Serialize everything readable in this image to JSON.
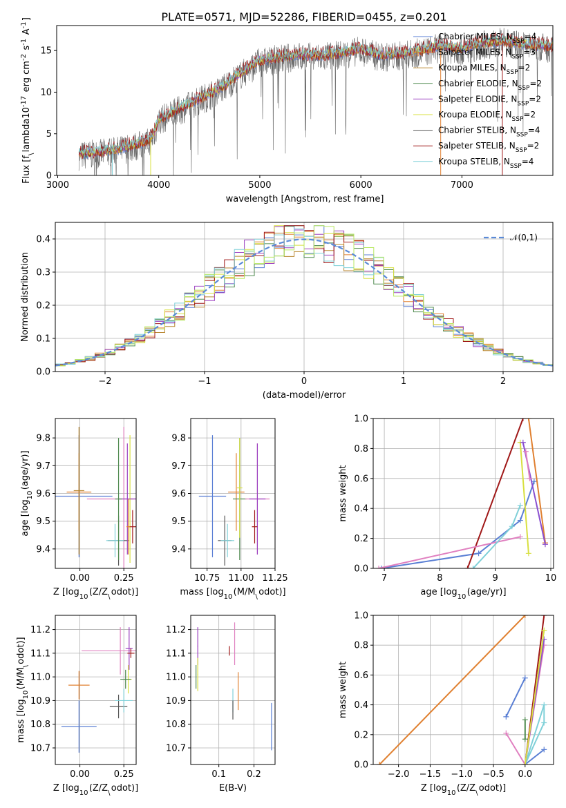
{
  "figure": {
    "title": "PLATE=0571, MJD=52286, FIBERID=0455, z=0.201"
  },
  "model_styles": [
    {
      "label": "Chabrier MILES, N$_{SSP}$=4",
      "label_main": "Chabrier MILES, N",
      "label_sub": "SSP",
      "label_tail": "=4",
      "color": "#5a7fd4"
    },
    {
      "label": "Salpeter MILES, N$_{SSP}$=3",
      "label_main": "Salpeter MILES, N",
      "label_sub": "SSP",
      "label_tail": "=3",
      "color": "#e08030"
    },
    {
      "label": "Kroupa MILES, N$_{SSP}$=2",
      "label_main": "Kroupa MILES, N",
      "label_sub": "SSP",
      "label_tail": "=2",
      "color": "#b8862f"
    },
    {
      "label": "Chabrier ELODIE, N$_{SSP}$=2",
      "label_main": "Chabrier ELODIE, N",
      "label_sub": "SSP",
      "label_tail": "=2",
      "color": "#4f8a4f"
    },
    {
      "label": "Salpeter ELODIE, N$_{SSP}$=2",
      "label_main": "Salpeter ELODIE, N",
      "label_sub": "SSP",
      "label_tail": "=2",
      "color": "#9b3fc0"
    },
    {
      "label": "Kroupa ELODIE, N$_{SSP}$=2",
      "label_main": "Kroupa ELODIE, N",
      "label_sub": "SSP",
      "label_tail": "=2",
      "color": "#d8e040"
    },
    {
      "label": "Chabrier STELIB, N$_{SSP}$=4",
      "label_main": "Chabrier STELIB, N",
      "label_sub": "SSP",
      "label_tail": "=4",
      "color": "#555555"
    },
    {
      "label": "Salpeter STELIB, N$_{SSP}$=2",
      "label_main": "Salpeter STELIB, N",
      "label_sub": "SSP",
      "label_tail": "=2",
      "color": "#a01818"
    },
    {
      "label": "Kroupa STELIB, N$_{SSP}$=4",
      "label_main": "Kroupa STELIB, N",
      "label_sub": "SSP",
      "label_tail": "=4",
      "color": "#7fd0d8"
    }
  ],
  "extra_colors": {
    "pink": "#e080c0",
    "lime": "#b8e860",
    "purple": "#8a4fd0"
  },
  "chart_data": [
    {
      "id": "spectrum",
      "type": "line",
      "xlabel": "wavelength [Angstrom, rest frame]",
      "ylabel": "Flux [f$_\\lambda$10$^{-17}$ erg cm$^{-2}$ s$^{-1}$ A$^{-1}$]",
      "xlim": [
        2990,
        7900
      ],
      "ylim": [
        0,
        18
      ],
      "xticks": [
        3000,
        4000,
        5000,
        6000,
        7000
      ],
      "yticks": [
        0,
        5,
        10,
        15
      ],
      "grid": false,
      "legend_position": "right",
      "data_range_x": [
        3210,
        7900
      ],
      "continuum": [
        [
          3210,
          2.6
        ],
        [
          3400,
          2.8
        ],
        [
          3600,
          3.2
        ],
        [
          3800,
          3.8
        ],
        [
          3900,
          4.2
        ],
        [
          3950,
          5.0
        ],
        [
          4000,
          6.8
        ],
        [
          4200,
          8.0
        ],
        [
          4400,
          9.2
        ],
        [
          4600,
          10.4
        ],
        [
          4800,
          12.2
        ],
        [
          5000,
          13.8
        ],
        [
          5200,
          14.2
        ],
        [
          5400,
          14.5
        ],
        [
          5600,
          14.4
        ],
        [
          5800,
          14.7
        ],
        [
          6000,
          15.2
        ],
        [
          6200,
          14.4
        ],
        [
          6400,
          14.6
        ],
        [
          6600,
          15.0
        ],
        [
          6800,
          15.6
        ],
        [
          7000,
          15.2
        ],
        [
          7200,
          15.9
        ],
        [
          7400,
          16.2
        ],
        [
          7600,
          15.8
        ],
        [
          7900,
          15.5
        ]
      ]
    },
    {
      "id": "residuals",
      "type": "histogram",
      "xlabel": "(data-model)/error",
      "ylabel": "Normed distribution",
      "xlim": [
        -2.5,
        2.5
      ],
      "ylim": [
        0,
        0.45
      ],
      "xticks": [
        -2,
        -1,
        0,
        1,
        2
      ],
      "yticks": [
        0.0,
        0.1,
        0.2,
        0.3,
        0.4
      ],
      "grid": true,
      "legend": "$\\mathcal{N}(0,1)$",
      "legend_position": "top-right",
      "bin_width": 0.1
    },
    {
      "id": "age-vs-Z",
      "type": "scatter",
      "xlabel": "Z [log$_{10}$(Z/Z$_\\odot$)]",
      "ylabel": "age  [log$_{10}$(age/yr)]",
      "xlim": [
        -0.14,
        0.32
      ],
      "ylim": [
        9.33,
        9.87
      ],
      "xticks": [
        0.0,
        0.25
      ],
      "yticks": [
        9.4,
        9.5,
        9.6,
        9.7,
        9.8
      ],
      "grid": true,
      "points": [
        {
          "series": 0,
          "x": -0.005,
          "y": 9.59,
          "xerr": 0.19,
          "yerr": 0.22
        },
        {
          "series": 1,
          "x": -0.005,
          "y": 9.605,
          "xerr": 0.07,
          "yerr": 0.14
        },
        {
          "series": 2,
          "x": -0.005,
          "y": 9.61,
          "xerr": 0.03,
          "yerr": 0.23
        },
        {
          "series": "pink",
          "x": 0.25,
          "y": 9.58,
          "xerr": 0.21,
          "yerr": 0.26
        },
        {
          "series": 6,
          "x": 0.22,
          "y": 9.43,
          "xerr": 0.06,
          "yerr": 0.09
        },
        {
          "series": 8,
          "x": 0.2,
          "y": 9.43,
          "xerr": 0.05,
          "yerr": 0.06
        },
        {
          "series": 5,
          "x": 0.285,
          "y": 9.58,
          "xerr": 0.02,
          "yerr": 0.23
        },
        {
          "series": 4,
          "x": 0.27,
          "y": 9.58,
          "xerr": 0.05,
          "yerr": 0.2
        },
        {
          "series": 3,
          "x": 0.22,
          "y": 9.58,
          "xerr": 0.02,
          "yerr": 0.22
        },
        {
          "series": 7,
          "x": 0.3,
          "y": 9.48,
          "xerr": 0.02,
          "yerr": 0.06
        },
        {
          "series": 1,
          "x": 0.275,
          "y": 9.48,
          "xerr": 0.01,
          "yerr": 0.1
        }
      ]
    },
    {
      "id": "age-vs-mass",
      "type": "scatter",
      "xlabel": "mass [log$_{10}$(M/M$_\\odot$)]",
      "ylabel": "",
      "xlim": [
        10.63,
        11.25
      ],
      "ylim": [
        9.33,
        9.87
      ],
      "xticks": [
        10.75,
        11.0,
        11.25
      ],
      "yticks": [
        9.4,
        9.5,
        9.6,
        9.7,
        9.8
      ],
      "grid": true,
      "points": [
        {
          "series": 0,
          "x": 10.79,
          "y": 9.59,
          "xerr": 0.1,
          "yerr": 0.22
        },
        {
          "series": 1,
          "x": 10.965,
          "y": 9.605,
          "xerr": 0.06,
          "yerr": 0.14
        },
        {
          "series": 6,
          "x": 10.88,
          "y": 9.43,
          "xerr": 0.05,
          "yerr": 0.09
        },
        {
          "series": 8,
          "x": 10.9,
          "y": 9.43,
          "xerr": 0.05,
          "yerr": 0.06
        },
        {
          "series": 3,
          "x": 10.99,
          "y": 9.58,
          "xerr": 0.05,
          "yerr": 0.22
        },
        {
          "series": 5,
          "x": 10.99,
          "y": 9.62,
          "xerr": 0.02,
          "yerr": 0.18
        },
        {
          "series": "pink",
          "x": 11.12,
          "y": 9.58,
          "xerr": 0.09,
          "yerr": 0.2
        },
        {
          "series": 4,
          "x": 11.12,
          "y": 9.58,
          "xerr": 0.06,
          "yerr": 0.2
        },
        {
          "series": 7,
          "x": 11.1,
          "y": 9.48,
          "xerr": 0.02,
          "yerr": 0.06
        }
      ]
    },
    {
      "id": "weight-vs-age",
      "type": "line",
      "xlabel": "age  [log$_{10}$(age/yr)]",
      "ylabel": "mass weight",
      "xlim": [
        6.8,
        10.05
      ],
      "ylim": [
        0,
        1
      ],
      "xticks": [
        7,
        8,
        9,
        10
      ],
      "yticks": [
        0.0,
        0.2,
        0.4,
        0.6,
        0.8,
        1.0
      ],
      "grid": true,
      "series": [
        {
          "series": 0,
          "points": [
            [
              6.95,
              0.0
            ],
            [
              8.7,
              0.1
            ],
            [
              9.45,
              0.32
            ],
            [
              9.7,
              0.58
            ]
          ]
        },
        {
          "series": 1,
          "points": [
            [
              9.6,
              1.0
            ],
            [
              9.9,
              0.17
            ]
          ]
        },
        {
          "series": 7,
          "points": [
            [
              8.5,
              0.0
            ],
            [
              9.5,
              1.0
            ]
          ]
        },
        {
          "series": "pink",
          "points": [
            [
              6.9,
              0.0
            ],
            [
              9.45,
              0.21
            ]
          ]
        },
        {
          "series": 8,
          "points": [
            [
              8.6,
              0.0
            ],
            [
              9.3,
              0.28
            ],
            [
              9.45,
              0.42
            ]
          ]
        },
        {
          "series": 5,
          "points": [
            [
              9.45,
              0.84
            ],
            [
              9.6,
              0.1
            ]
          ]
        },
        {
          "series": "purple",
          "points": [
            [
              9.5,
              0.84
            ],
            [
              9.9,
              0.16
            ]
          ]
        },
        {
          "series": "pink",
          "points": [
            [
              9.55,
              0.78
            ],
            [
              9.62,
              0.6
            ]
          ]
        }
      ]
    },
    {
      "id": "mass-vs-Z",
      "type": "scatter",
      "xlabel": "Z [log$_{10}$(Z/Z$_\\odot$)]",
      "ylabel": "mass [log$_{10}$(M/M$_\\odot$)]",
      "xlim": [
        -0.14,
        0.32
      ],
      "ylim": [
        10.63,
        11.26
      ],
      "xticks": [
        0.0,
        0.25
      ],
      "yticks": [
        10.7,
        10.8,
        10.9,
        11.0,
        11.1,
        11.2
      ],
      "grid": true,
      "points": [
        {
          "series": 0,
          "x": -0.005,
          "y": 10.79,
          "xerr": 0.1,
          "yerr": 0.11
        },
        {
          "series": 1,
          "x": -0.005,
          "y": 10.965,
          "xerr": 0.06,
          "yerr": 0.06
        },
        {
          "series": 6,
          "x": 0.22,
          "y": 10.875,
          "xerr": 0.05,
          "yerr": 0.05
        },
        {
          "series": 8,
          "x": 0.25,
          "y": 10.9,
          "xerr": 0.05,
          "yerr": 0.05
        },
        {
          "series": "pink",
          "x": 0.23,
          "y": 11.11,
          "xerr": 0.22,
          "yerr": 0.1
        },
        {
          "series": 4,
          "x": 0.28,
          "y": 11.12,
          "xerr": 0.02,
          "yerr": 0.09
        },
        {
          "series": 7,
          "x": 0.29,
          "y": 11.1,
          "xerr": 0.02,
          "yerr": 0.02
        },
        {
          "series": 5,
          "x": 0.275,
          "y": 10.99,
          "xerr": 0.02,
          "yerr": 0.06
        },
        {
          "series": 3,
          "x": 0.26,
          "y": 10.99,
          "xerr": 0.03,
          "yerr": 0.04
        }
      ]
    },
    {
      "id": "mass-vs-ebv",
      "type": "scatter",
      "xlabel": "E(B-V)",
      "ylabel": "",
      "xlim": [
        0.02,
        0.26
      ],
      "ylim": [
        10.63,
        11.26
      ],
      "xticks": [
        0.1,
        0.2
      ],
      "yticks": [
        10.7,
        10.8,
        10.9,
        11.0,
        11.1,
        11.2
      ],
      "grid": true,
      "points": [
        {
          "series": 0,
          "x": 0.25,
          "y": 10.79,
          "xerr": 0.001,
          "yerr": 0.1
        },
        {
          "series": 1,
          "x": 0.155,
          "y": 10.94,
          "xerr": 0.001,
          "yerr": 0.08
        },
        {
          "series": 4,
          "x": 0.04,
          "y": 11.13,
          "xerr": 0.001,
          "yerr": 0.08
        },
        {
          "series": 5,
          "x": 0.04,
          "y": 11.01,
          "xerr": 0.001,
          "yerr": 0.07
        },
        {
          "series": 3,
          "x": 0.035,
          "y": 11.0,
          "xerr": 0.001,
          "yerr": 0.05
        },
        {
          "series": "pink",
          "x": 0.145,
          "y": 11.14,
          "xerr": 0.001,
          "yerr": 0.09
        },
        {
          "series": 7,
          "x": 0.13,
          "y": 11.11,
          "xerr": 0.001,
          "yerr": 0.02
        },
        {
          "series": 8,
          "x": 0.14,
          "y": 10.9,
          "xerr": 0.001,
          "yerr": 0.05
        },
        {
          "series": 6,
          "x": 0.14,
          "y": 10.86,
          "xerr": 0.001,
          "yerr": 0.04
        }
      ]
    },
    {
      "id": "weight-vs-Z",
      "type": "line",
      "xlabel": "Z [log$_{10}$(Z/Z$_\\odot$)]",
      "ylabel": "mass weight",
      "xlim": [
        -2.4,
        0.45
      ],
      "ylim": [
        0,
        1
      ],
      "xticks": [
        -2.0,
        -1.5,
        -1.0,
        -0.5,
        0.0
      ],
      "yticks": [
        0.0,
        0.2,
        0.4,
        0.6,
        0.8,
        1.0
      ],
      "grid": true,
      "series": [
        {
          "series": 1,
          "points": [
            [
              -2.3,
              0.0
            ],
            [
              0.0,
              1.0
            ]
          ]
        },
        {
          "series": 7,
          "points": [
            [
              0.0,
              0.0
            ],
            [
              0.3,
              1.0
            ]
          ]
        },
        {
          "series": 0,
          "points": [
            [
              -0.3,
              0.32
            ],
            [
              0.0,
              0.58
            ]
          ]
        },
        {
          "series": 0,
          "points": [
            [
              0.0,
              0.0
            ],
            [
              0.3,
              0.1
            ]
          ]
        },
        {
          "series": 8,
          "points": [
            [
              0.0,
              0.0
            ],
            [
              0.3,
              0.4
            ],
            [
              0.3,
              0.28
            ],
            [
              0.0,
              0.0
            ]
          ]
        },
        {
          "series": "pink",
          "points": [
            [
              -0.3,
              0.21
            ],
            [
              0.0,
              0.0
            ],
            [
              0.3,
              0.8
            ]
          ]
        },
        {
          "series": "purple",
          "points": [
            [
              0.0,
              0.0
            ],
            [
              0.3,
              0.84
            ]
          ]
        },
        {
          "series": 5,
          "points": [
            [
              0.0,
              0.0
            ],
            [
              0.3,
              0.9
            ]
          ]
        },
        {
          "series": 3,
          "points": [
            [
              0.0,
              0.17
            ],
            [
              0.0,
              0.3
            ]
          ]
        }
      ]
    }
  ]
}
